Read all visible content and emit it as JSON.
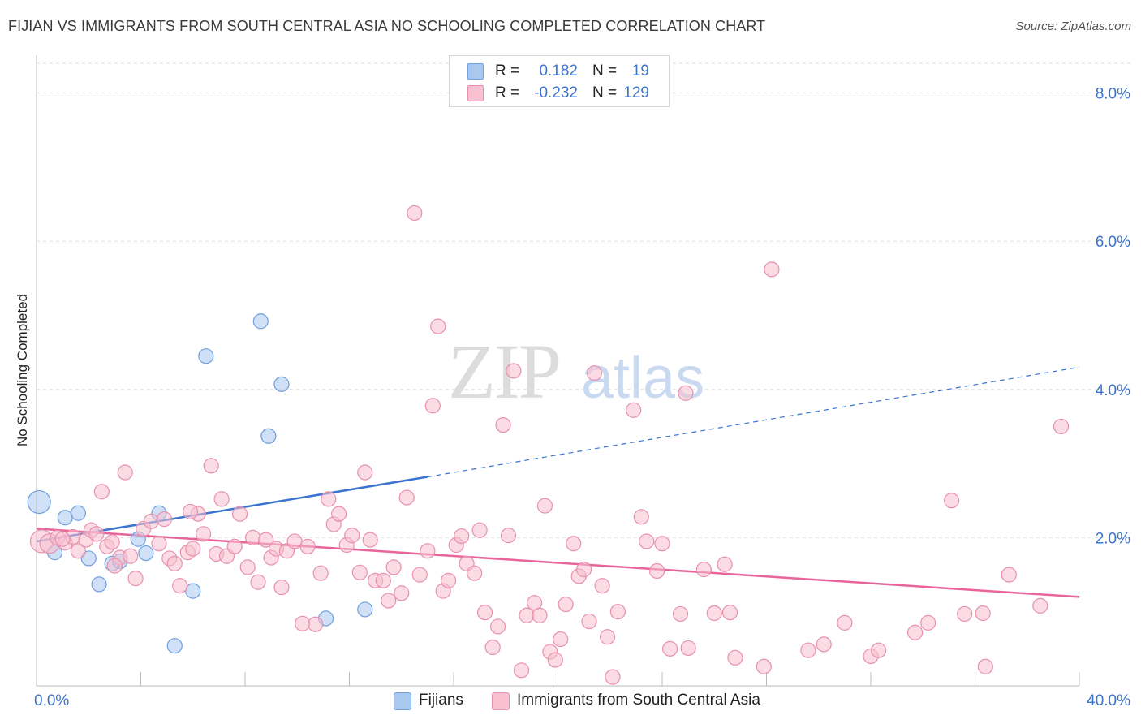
{
  "title": "FIJIAN VS IMMIGRANTS FROM SOUTH CENTRAL ASIA NO SCHOOLING COMPLETED CORRELATION CHART",
  "source": "Source: ZipAtlas.com",
  "watermark": {
    "zip": "ZIP",
    "atlas": "atlas"
  },
  "legend_top": [
    {
      "swatch_color": "#a9c8f0",
      "swatch_border": "#6f9fdc",
      "r_label": "R =",
      "r_value": "0.182",
      "n_label": "N =",
      "n_value": "19"
    },
    {
      "swatch_color": "#f8c0d0",
      "swatch_border": "#e890ad",
      "r_label": "R =",
      "r_value": "-0.232",
      "n_label": "N =",
      "n_value": "129"
    }
  ],
  "legend_bottom": [
    {
      "label": "Fijians",
      "color": "#a9c8f0",
      "border": "#6f9fdc"
    },
    {
      "label": "Immigrants from South Central Asia",
      "color": "#f8c0d0",
      "border": "#e890ad"
    }
  ],
  "colors": {
    "blue": "#3a74d0",
    "pink": "#e8649a",
    "grid": "#dedede",
    "axis": "#bbbbbb"
  },
  "chart_data": {
    "type": "scatter",
    "ylabel": "No Schooling Completed",
    "xlabel": "",
    "xlim": [
      0,
      40
    ],
    "ylim": [
      0,
      8.4
    ],
    "y_ticks": [
      2.0,
      4.0,
      6.0,
      8.0
    ],
    "y_tick_labels": [
      "2.0%",
      "4.0%",
      "6.0%",
      "8.0%"
    ],
    "x_tick_labels_shown": [
      "0.0%",
      "40.0%"
    ],
    "x_minor_ticks": [
      0,
      4,
      8,
      12,
      16,
      20,
      24,
      28,
      32,
      36,
      40
    ],
    "grid": true,
    "series": [
      {
        "name": "Fijians",
        "color": "#a9c8f0",
        "edge": "#6f9fdc",
        "trend": {
          "x0": 0,
          "y0": 1.95,
          "x1": 15,
          "y1": 2.82,
          "x_end": 40,
          "y_end": 4.3
        },
        "points": [
          [
            0.1,
            2.48,
            3
          ],
          [
            0.7,
            1.8,
            1
          ],
          [
            1.1,
            2.27,
            1
          ],
          [
            1.6,
            2.33,
            1
          ],
          [
            2.0,
            1.72,
            1
          ],
          [
            2.4,
            1.37,
            1
          ],
          [
            2.9,
            1.65,
            1
          ],
          [
            3.2,
            1.68,
            1
          ],
          [
            3.9,
            1.98,
            1
          ],
          [
            4.2,
            1.79,
            1
          ],
          [
            4.7,
            2.33,
            1
          ],
          [
            5.3,
            0.54,
            1
          ],
          [
            6.0,
            1.28,
            1
          ],
          [
            6.5,
            4.45,
            1
          ],
          [
            8.6,
            4.92,
            1
          ],
          [
            8.9,
            3.37,
            1
          ],
          [
            9.4,
            4.07,
            1
          ],
          [
            11.1,
            0.91,
            1
          ],
          [
            12.6,
            1.03,
            1
          ]
        ]
      },
      {
        "name": "Immigrants from South Central Asia",
        "color": "#f8c0d0",
        "edge": "#e890ad",
        "trend": {
          "x0": 0,
          "y0": 2.12,
          "x1": 40,
          "y1": 1.2
        },
        "points": [
          [
            0.2,
            1.95,
            3
          ],
          [
            0.5,
            1.92,
            2
          ],
          [
            0.8,
            2.0,
            1
          ],
          [
            1.1,
            1.93,
            1
          ],
          [
            1.4,
            2.01,
            1
          ],
          [
            1.6,
            1.82,
            1
          ],
          [
            1.9,
            1.97,
            1
          ],
          [
            2.1,
            2.1,
            1
          ],
          [
            2.3,
            2.05,
            1
          ],
          [
            2.5,
            2.62,
            1
          ],
          [
            2.7,
            1.88,
            1
          ],
          [
            2.9,
            1.94,
            1
          ],
          [
            3.2,
            1.73,
            1
          ],
          [
            3.4,
            2.88,
            1
          ],
          [
            3.6,
            1.75,
            1
          ],
          [
            3.8,
            1.45,
            1
          ],
          [
            4.1,
            2.12,
            1
          ],
          [
            4.4,
            2.22,
            1
          ],
          [
            4.7,
            1.92,
            1
          ],
          [
            4.9,
            2.25,
            1
          ],
          [
            5.1,
            1.72,
            1
          ],
          [
            5.3,
            1.65,
            1
          ],
          [
            5.5,
            1.35,
            1
          ],
          [
            5.8,
            1.8,
            1
          ],
          [
            6.0,
            1.85,
            1
          ],
          [
            6.2,
            2.32,
            1
          ],
          [
            6.4,
            2.05,
            1
          ],
          [
            6.7,
            2.97,
            1
          ],
          [
            6.9,
            1.78,
            1
          ],
          [
            7.1,
            2.52,
            1
          ],
          [
            7.3,
            1.75,
            1
          ],
          [
            7.6,
            1.88,
            1
          ],
          [
            7.8,
            2.32,
            1
          ],
          [
            8.1,
            1.6,
            1
          ],
          [
            8.3,
            2.0,
            1
          ],
          [
            8.5,
            1.4,
            1
          ],
          [
            8.8,
            1.97,
            1
          ],
          [
            9.0,
            1.73,
            1
          ],
          [
            9.2,
            1.85,
            1
          ],
          [
            9.4,
            1.33,
            1
          ],
          [
            9.6,
            1.82,
            1
          ],
          [
            9.9,
            1.95,
            1
          ],
          [
            10.2,
            0.84,
            1
          ],
          [
            10.4,
            1.88,
            1
          ],
          [
            10.7,
            0.83,
            1
          ],
          [
            10.9,
            1.52,
            1
          ],
          [
            11.2,
            2.52,
            1
          ],
          [
            11.4,
            2.18,
            1
          ],
          [
            11.6,
            2.32,
            1
          ],
          [
            11.9,
            1.9,
            1
          ],
          [
            12.1,
            2.03,
            1
          ],
          [
            12.4,
            1.53,
            1
          ],
          [
            12.6,
            2.88,
            1
          ],
          [
            12.8,
            1.97,
            1
          ],
          [
            13.0,
            1.42,
            1
          ],
          [
            13.3,
            1.42,
            1
          ],
          [
            13.5,
            1.15,
            1
          ],
          [
            13.7,
            1.6,
            1
          ],
          [
            14.0,
            1.25,
            1
          ],
          [
            14.2,
            2.54,
            1
          ],
          [
            14.5,
            6.38,
            1
          ],
          [
            14.7,
            1.5,
            1
          ],
          [
            15.0,
            1.82,
            1
          ],
          [
            15.2,
            3.78,
            1
          ],
          [
            15.4,
            4.85,
            1
          ],
          [
            15.6,
            1.28,
            1
          ],
          [
            15.8,
            1.42,
            1
          ],
          [
            16.1,
            1.9,
            1
          ],
          [
            16.3,
            2.02,
            1
          ],
          [
            16.5,
            1.65,
            1
          ],
          [
            16.8,
            1.52,
            1
          ],
          [
            17.0,
            2.1,
            1
          ],
          [
            17.2,
            0.99,
            1
          ],
          [
            17.5,
            0.52,
            1
          ],
          [
            17.7,
            0.8,
            1
          ],
          [
            17.9,
            3.52,
            1
          ],
          [
            18.1,
            2.03,
            1
          ],
          [
            18.3,
            4.25,
            1
          ],
          [
            18.6,
            0.21,
            1
          ],
          [
            18.8,
            0.95,
            1
          ],
          [
            19.1,
            1.12,
            1
          ],
          [
            19.3,
            0.95,
            1
          ],
          [
            19.5,
            2.43,
            1
          ],
          [
            19.7,
            0.46,
            1
          ],
          [
            19.9,
            0.35,
            1
          ],
          [
            20.1,
            0.63,
            1
          ],
          [
            20.3,
            1.1,
            1
          ],
          [
            20.6,
            1.92,
            1
          ],
          [
            20.8,
            1.48,
            1
          ],
          [
            21.0,
            1.57,
            1
          ],
          [
            21.2,
            0.87,
            1
          ],
          [
            21.4,
            4.22,
            1
          ],
          [
            21.7,
            1.35,
            1
          ],
          [
            21.9,
            0.66,
            1
          ],
          [
            22.1,
            0.12,
            1
          ],
          [
            22.3,
            1.0,
            1
          ],
          [
            22.9,
            3.72,
            1
          ],
          [
            23.2,
            2.28,
            1
          ],
          [
            23.4,
            1.95,
            1
          ],
          [
            23.8,
            1.55,
            1
          ],
          [
            24.0,
            1.92,
            1
          ],
          [
            24.3,
            0.5,
            1
          ],
          [
            24.7,
            0.97,
            1
          ],
          [
            24.9,
            3.95,
            1
          ],
          [
            25.0,
            0.51,
            1
          ],
          [
            25.6,
            1.57,
            1
          ],
          [
            26.0,
            0.98,
            1
          ],
          [
            26.4,
            1.64,
            1
          ],
          [
            26.6,
            0.99,
            1
          ],
          [
            26.8,
            0.38,
            1
          ],
          [
            27.9,
            0.26,
            1
          ],
          [
            28.2,
            5.62,
            1
          ],
          [
            29.6,
            0.48,
            1
          ],
          [
            30.2,
            0.56,
            1
          ],
          [
            31.0,
            0.85,
            1
          ],
          [
            32.0,
            0.4,
            1
          ],
          [
            32.3,
            0.48,
            1
          ],
          [
            33.7,
            0.72,
            1
          ],
          [
            34.2,
            0.85,
            1
          ],
          [
            35.1,
            2.5,
            1
          ],
          [
            35.6,
            0.97,
            1
          ],
          [
            36.3,
            0.98,
            1
          ],
          [
            36.4,
            0.26,
            1
          ],
          [
            37.3,
            1.5,
            1
          ],
          [
            38.5,
            1.08,
            1
          ],
          [
            39.3,
            3.5,
            1
          ],
          [
            1.0,
            1.98,
            1
          ],
          [
            3.0,
            1.62,
            1
          ],
          [
            5.9,
            2.35,
            1
          ]
        ]
      }
    ]
  }
}
